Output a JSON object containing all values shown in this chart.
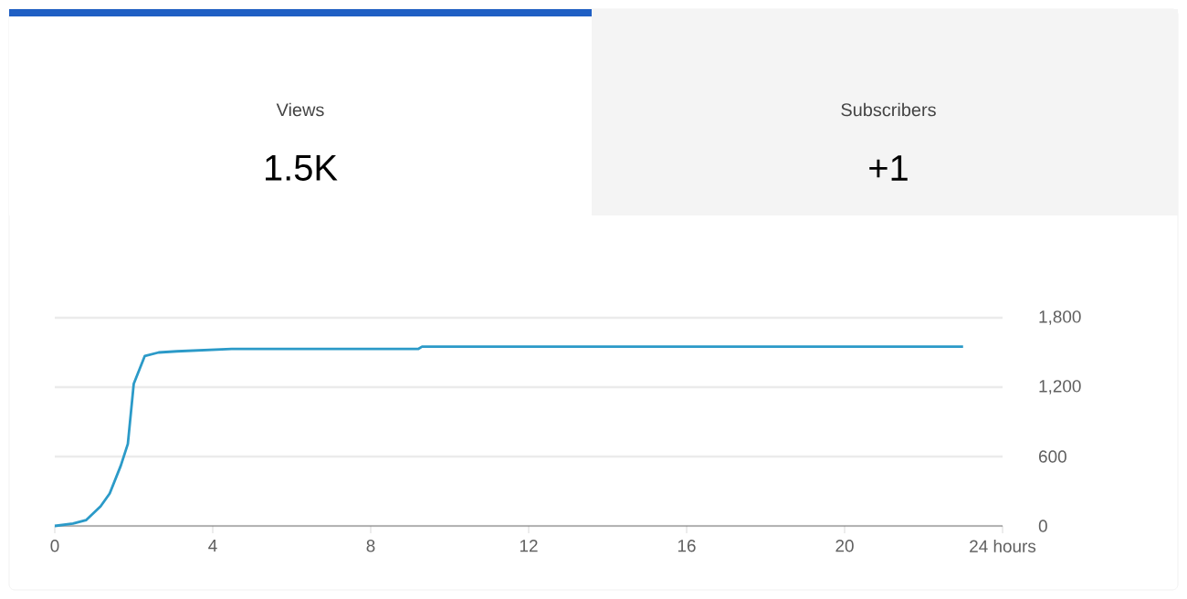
{
  "chart_data": {
    "type": "line",
    "annotations": [
      "Views",
      "1.5K",
      "Subscribers",
      "+1"
    ],
    "x": [
      0,
      0.46,
      0.79,
      1.16,
      1.39,
      1.67,
      1.85,
      2.0,
      2.28,
      2.63,
      3.09,
      4.48,
      9.2,
      9.3,
      23.0
    ],
    "series": [
      {
        "color": "#2b9ac8",
        "values": [
          0,
          20,
          50,
          170,
          280,
          520,
          710,
          1230,
          1470,
          1500,
          1510,
          1530,
          1530,
          1550,
          1550
        ]
      }
    ],
    "xlim": [
      0,
      24
    ],
    "xticks": [
      0,
      4,
      8,
      12,
      16,
      20,
      {
        "value": 24,
        "label": "24 hours"
      }
    ],
    "ylim": [
      0,
      1800
    ],
    "yticks": [
      0,
      {
        "value": 600,
        "label": "600"
      },
      {
        "value": 1200,
        "label": "1,200"
      },
      {
        "value": 1800,
        "label": "1,800"
      }
    ],
    "grid": "y",
    "marker": "none",
    "line_style": "solid"
  }
}
